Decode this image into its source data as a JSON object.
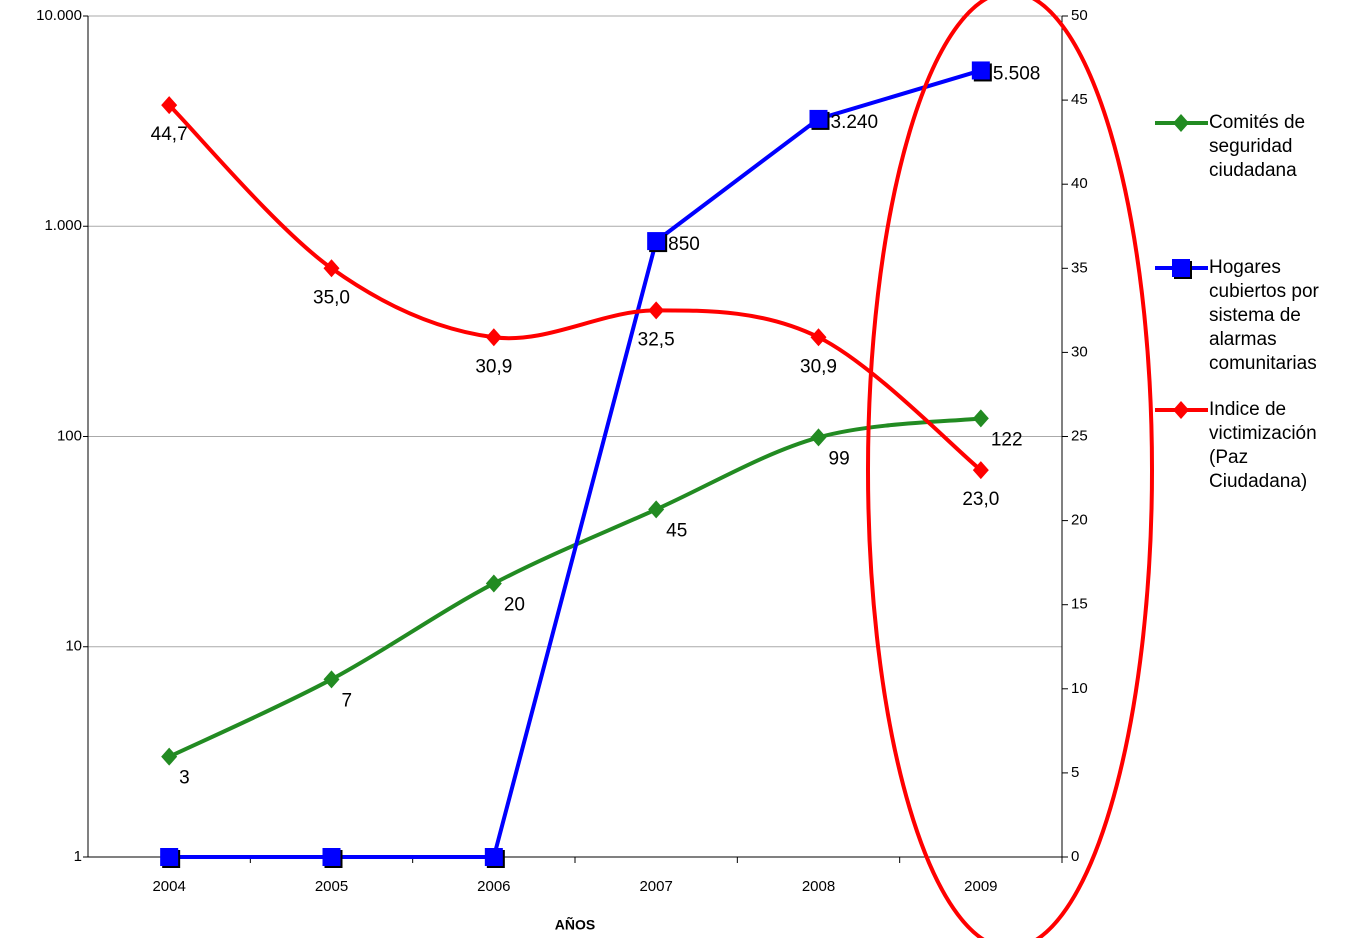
{
  "chart_data": {
    "type": "line",
    "x_label": "AÑOS",
    "categories": [
      "2004",
      "2005",
      "2006",
      "2007",
      "2008",
      "2009"
    ],
    "log_y": true,
    "ylim": [
      1,
      10000
    ],
    "yticks": [
      1,
      10,
      100,
      {
        "value": 1000,
        "label": "1.000"
      },
      {
        "value": 10000,
        "label": "10.000"
      }
    ],
    "y2lim": [
      0,
      50
    ],
    "y2ticks": [
      0,
      5,
      10,
      15,
      20,
      25,
      30,
      35,
      40,
      45,
      50
    ],
    "grid": true,
    "legend": "right",
    "series": [
      {
        "name": "Comités de seguridad ciudadana",
        "color": "#228B22",
        "marker": "diamond",
        "smooth": true,
        "values": [
          3,
          7,
          20,
          45,
          99,
          122
        ]
      },
      {
        "name": "Hogares cubiertos por sistema de alarmas comunitarias",
        "color": "#0000FF",
        "marker": "square",
        "smooth": false,
        "values": [
          1,
          1,
          1,
          850,
          3240,
          5508
        ],
        "value_labels": [
          null,
          null,
          null,
          "850",
          "3.240",
          "5.508"
        ]
      },
      {
        "name": "Indice de victimización (Paz Ciudadana)",
        "color": "#FF0000",
        "marker": "diamond",
        "smooth": true,
        "axis": "y2",
        "values": [
          44.7,
          35.0,
          30.9,
          32.5,
          30.9,
          23.0
        ],
        "value_labels": [
          "44,7",
          "35,0",
          "30,9",
          "32,5",
          "30,9",
          "23,0"
        ]
      }
    ]
  }
}
